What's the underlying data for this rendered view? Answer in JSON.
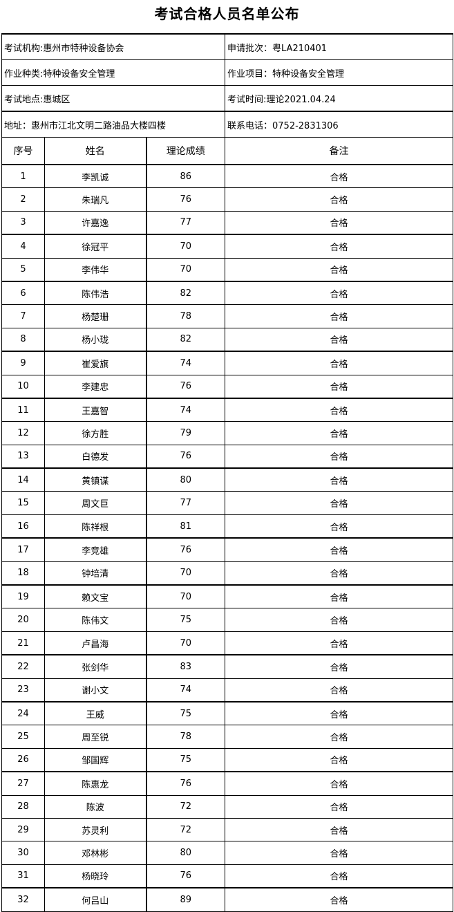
{
  "title": "考试合格人员名单公布",
  "info": [
    {
      "left": "考试机构:惠州市特种设备协会",
      "right": "申请批次：粤LA210401"
    },
    {
      "left": "作业种类:特种设备安全管理",
      "right": "作业项目：特种设备安全管理"
    },
    {
      "left": "考试地点:惠城区",
      "right": "考试时间:理论2021.04.24"
    },
    {
      "left": "地址：惠州市江北文明二路油品大楼四楼",
      "right": "联系电话：0752-2831306"
    }
  ],
  "columns": [
    "序号",
    "姓名",
    "理论成绩",
    "备注"
  ],
  "rows": [
    {
      "no": "1",
      "name": "李凯诚",
      "score": "86",
      "note": "合格"
    },
    {
      "no": "2",
      "name": "朱瑞凡",
      "score": "76",
      "note": "合格"
    },
    {
      "no": "3",
      "name": "许嘉逸",
      "score": "77",
      "note": "合格"
    },
    {
      "no": "4",
      "name": "徐冠平",
      "score": "70",
      "note": "合格"
    },
    {
      "no": "5",
      "name": "李伟华",
      "score": "70",
      "note": "合格"
    },
    {
      "no": "6",
      "name": "陈伟浩",
      "score": "82",
      "note": "合格"
    },
    {
      "no": "7",
      "name": "杨楚珊",
      "score": "78",
      "note": "合格"
    },
    {
      "no": "8",
      "name": "杨小珑",
      "score": "82",
      "note": "合格"
    },
    {
      "no": "9",
      "name": "崔爱旗",
      "score": "74",
      "note": "合格"
    },
    {
      "no": "10",
      "name": "李建忠",
      "score": "76",
      "note": "合格"
    },
    {
      "no": "11",
      "name": "王嘉智",
      "score": "74",
      "note": "合格"
    },
    {
      "no": "12",
      "name": "徐方胜",
      "score": "79",
      "note": "合格"
    },
    {
      "no": "13",
      "name": "白德发",
      "score": "76",
      "note": "合格"
    },
    {
      "no": "14",
      "name": "黄镇谋",
      "score": "80",
      "note": "合格"
    },
    {
      "no": "15",
      "name": "周文巨",
      "score": "77",
      "note": "合格"
    },
    {
      "no": "16",
      "name": "陈祥根",
      "score": "81",
      "note": "合格"
    },
    {
      "no": "17",
      "name": "李竞雄",
      "score": "76",
      "note": "合格"
    },
    {
      "no": "18",
      "name": "钟培清",
      "score": "70",
      "note": "合格"
    },
    {
      "no": "19",
      "name": "赖文宝",
      "score": "70",
      "note": "合格"
    },
    {
      "no": "20",
      "name": "陈伟文",
      "score": "75",
      "note": "合格"
    },
    {
      "no": "21",
      "name": "卢昌海",
      "score": "70",
      "note": "合格"
    },
    {
      "no": "22",
      "name": "张剑华",
      "score": "83",
      "note": "合格"
    },
    {
      "no": "23",
      "name": "谢小文",
      "score": "74",
      "note": "合格"
    },
    {
      "no": "24",
      "name": "王威",
      "score": "75",
      "note": "合格"
    },
    {
      "no": "25",
      "name": "周至锐",
      "score": "78",
      "note": "合格"
    },
    {
      "no": "26",
      "name": "邹国辉",
      "score": "75",
      "note": "合格"
    },
    {
      "no": "27",
      "name": "陈惠龙",
      "score": "76",
      "note": "合格"
    },
    {
      "no": "28",
      "name": "陈波",
      "score": "72",
      "note": "合格"
    },
    {
      "no": "29",
      "name": "苏灵利",
      "score": "72",
      "note": "合格"
    },
    {
      "no": "30",
      "name": "邓林彬",
      "score": "80",
      "note": "合格"
    },
    {
      "no": "31",
      "name": "杨晓玲",
      "score": "76",
      "note": "合格"
    },
    {
      "no": "32",
      "name": "何吕山",
      "score": "89",
      "note": "合格"
    }
  ]
}
